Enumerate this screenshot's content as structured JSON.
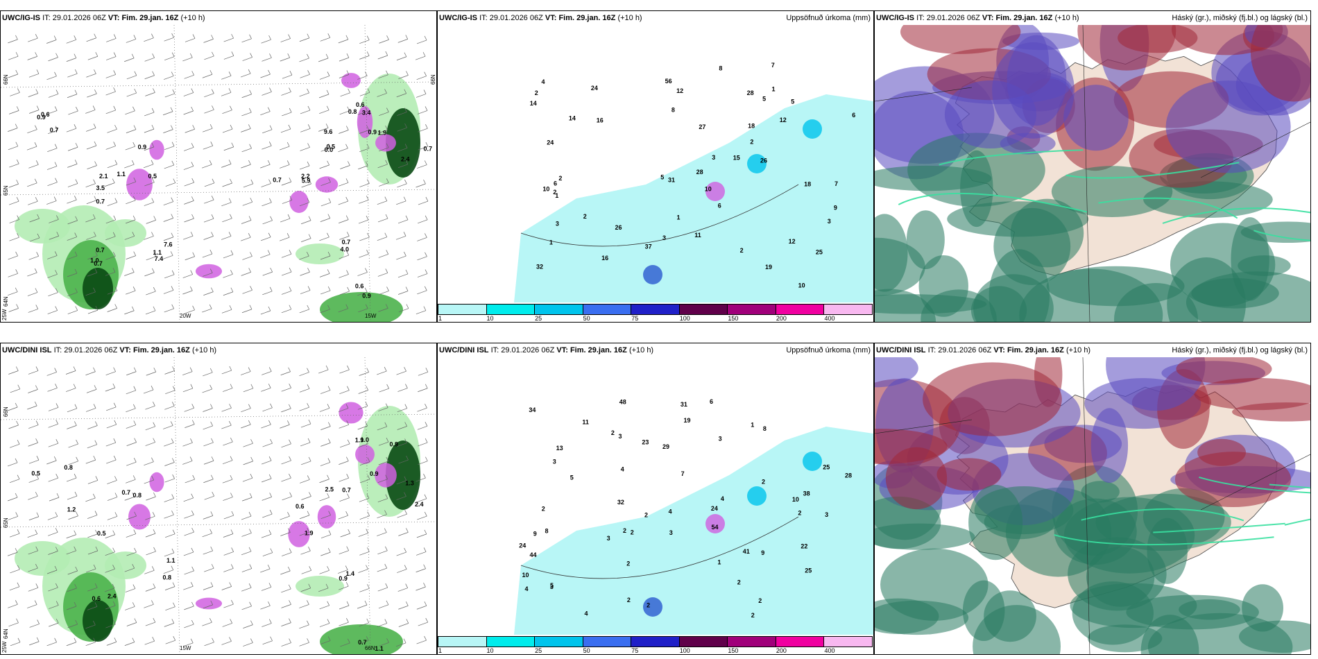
{
  "panels": [
    {
      "model": "UWC/IG-IS",
      "it_label": "IT:",
      "it": "29.01.2026 06Z",
      "vt_label": "VT:",
      "vt": "Fim. 29.jan. 16Z",
      "lead": "(+10 h)",
      "right_title": "",
      "values": [
        "0.6",
        "3.5",
        "0.7",
        "0.5",
        "1.1",
        "0.7",
        "0.5",
        "0.8",
        "1.9",
        "0.7",
        "0.7",
        "0.6",
        "0.9",
        "2.1",
        "0.7",
        "0.9",
        "7.4",
        "5.9",
        "9.6",
        "3.4",
        "0.9",
        "2.4",
        "4.0",
        "0.9",
        "0.7",
        "0.7",
        "1.0",
        "1.1",
        "7.6",
        "2.2",
        "0.0",
        "0.6"
      ],
      "axis_labels": [
        "66N",
        "65N",
        "64N",
        "25W",
        "20W",
        "15W",
        "66N"
      ]
    },
    {
      "model": "UWC/IG-IS",
      "it_label": "IT:",
      "it": "29.01.2026 06Z",
      "vt_label": "VT:",
      "vt": "Fim. 29.jan. 16Z",
      "lead": "(+10 h)",
      "right_title": "Uppsöfnuð úrkoma (mm)",
      "values": [
        "7",
        "16",
        "18",
        "28",
        "28",
        "26",
        "32",
        "37",
        "1",
        "2",
        "1",
        "3",
        "3",
        "2",
        "2",
        "6",
        "11",
        "31",
        "27",
        "25",
        "56",
        "24",
        "1",
        "5",
        "4",
        "6",
        "5",
        "12",
        "8",
        "2",
        "2",
        "5",
        "15",
        "7",
        "3",
        "3",
        "6",
        "24",
        "18",
        "14",
        "10",
        "12",
        "19",
        "12",
        "14",
        "2",
        "1",
        "9",
        "10",
        "16",
        "10",
        "8",
        "26"
      ],
      "colorbar_ticks": [
        "1",
        "10",
        "25",
        "50",
        "75",
        "100",
        "150",
        "200",
        "400"
      ]
    },
    {
      "model": "UWC/IG-IS",
      "it_label": "IT:",
      "it": "29.01.2026 06Z",
      "vt_label": "VT:",
      "vt": "Fim. 29.jan. 16Z",
      "lead": "(+10 h)",
      "right_title": "Háský (gr.), miðský (fj.bl.) og lágský (bl.)"
    },
    {
      "model": "UWC/DINI ISL",
      "it_label": "IT:",
      "it": "29.01.2026 06Z",
      "vt_label": "VT:",
      "vt": "Fim. 29.jan. 16Z",
      "lead": "(+10 h)",
      "right_title": "",
      "values": [
        "0.8",
        "0.5",
        "0.6",
        "0.8",
        "1.1",
        "1.9",
        "0.7",
        "1.0",
        "0.9",
        "2.4",
        "0.9",
        "1.1",
        "0.5",
        "1.2",
        "2.4",
        "0.7",
        "0.8",
        "0.6",
        "2.5",
        "1.9",
        "0.9",
        "1.3",
        "1.4",
        "0.7"
      ],
      "axis_labels": [
        "66N",
        "65N",
        "64N",
        "25W",
        "15W",
        "66N"
      ]
    },
    {
      "model": "UWC/DINI ISL",
      "it_label": "IT:",
      "it": "29.01.2026 06Z",
      "vt_label": "VT:",
      "vt": "Fim. 29.jan. 16Z",
      "lead": "(+10 h)",
      "right_title": "Uppsöfnuð úrkoma (mm)",
      "values": [
        "2",
        "3",
        "1",
        "2",
        "25",
        "31",
        "29",
        "41",
        "23",
        "28",
        "44",
        "54",
        "32",
        "2",
        "4",
        "2",
        "2",
        "4",
        "6",
        "9",
        "7",
        "11",
        "4",
        "2",
        "3",
        "2",
        "5",
        "8",
        "2",
        "48",
        "24",
        "22",
        "13",
        "34",
        "24",
        "25",
        "19",
        "38",
        "9",
        "8",
        "10",
        "10",
        "2",
        "2",
        "3",
        "2",
        "3",
        "1",
        "2",
        "5",
        "3",
        "4",
        "3",
        "4",
        "3",
        "2"
      ],
      "colorbar_ticks": [
        "1",
        "10",
        "25",
        "50",
        "75",
        "100",
        "150",
        "200",
        "400"
      ]
    },
    {
      "model": "UWC/DINI ISL",
      "it_label": "IT:",
      "it": "29.01.2026 06Z",
      "vt_label": "VT:",
      "vt": "Fim. 29.jan. 16Z",
      "lead": "(+10 h)",
      "right_title": "Háský (gr.), miðský (fj.bl.) og lágský (bl.)"
    }
  ],
  "colorbar_colors": [
    "#b8f6f6",
    "#00ecec",
    "#00c4ec",
    "#3a6ef0",
    "#2020c8",
    "#60004a",
    "#a0007a",
    "#f000a0",
    "#f8b8f0"
  ],
  "colors": {
    "land": "#f6e6d8",
    "green_light": "#b4ecb4",
    "green_mid": "#4cb24c",
    "green_dark": "#0a4a14",
    "violet": "#d060e0",
    "cyan_light": "#b8f6f6",
    "cloud_high": "#287a60",
    "cloud_mid": "#5a4ac0",
    "cloud_low": "#a02838"
  }
}
